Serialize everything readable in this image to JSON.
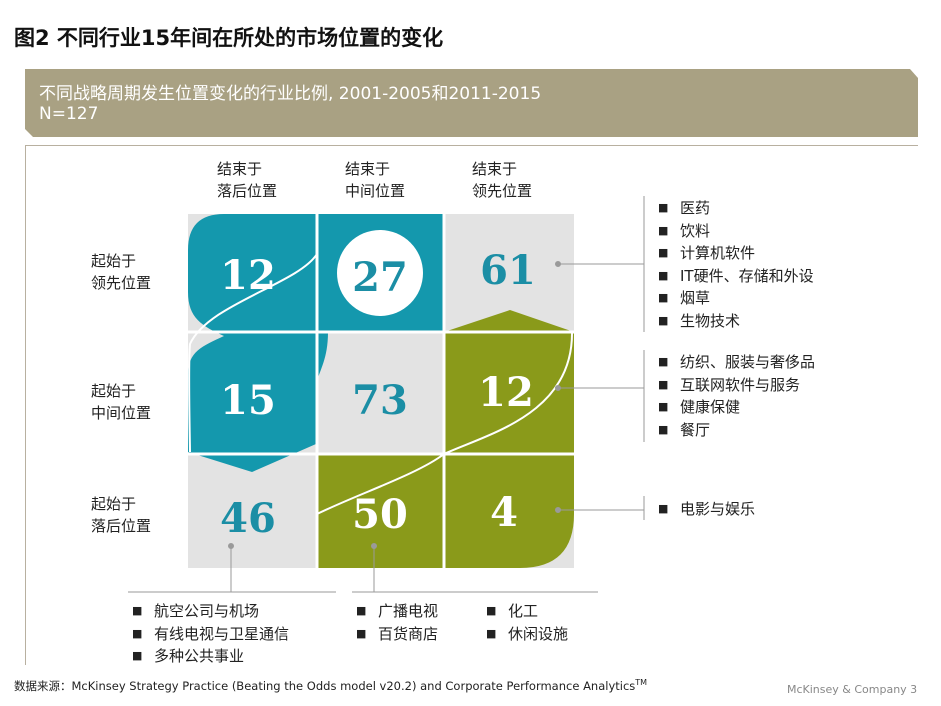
{
  "title": "图2 不同行业15年间在所处的市场位置的变化",
  "banner": {
    "line1": "不同战略周期发生位置变化的行业比例, 2001-2005和2011-2015",
    "line2": "N=127"
  },
  "columns": [
    {
      "line1": "结束于",
      "line2": "落后位置"
    },
    {
      "line1": "结束于",
      "line2": "中间位置"
    },
    {
      "line1": "结束于",
      "line2": "领先位置"
    }
  ],
  "rows": [
    {
      "line1": "起始于",
      "line2": "领先位置"
    },
    {
      "line1": "起始于",
      "line2": "中间位置"
    },
    {
      "line1": "起始于",
      "line2": "落后位置"
    }
  ],
  "matrix": [
    [
      "12",
      "27",
      "61"
    ],
    [
      "15",
      "73",
      "12"
    ],
    [
      "46",
      "50",
      "4"
    ]
  ],
  "lists": {
    "top_leader": [
      "医药",
      "饮料",
      "计算机软件",
      "IT硬件、存储和外设",
      "烟草",
      "生物技术"
    ],
    "mid_leader": [
      "纺织、服装与奢侈品",
      "互联网软件与服务",
      "健康保健",
      "餐厅"
    ],
    "lag_leader": [
      "电影与娱乐"
    ],
    "lag_lag": [
      "航空公司与机场",
      "有线电视与卫星通信",
      "多种公共事业"
    ],
    "lag_mid_a": [
      "广播电视",
      "百货商店"
    ],
    "lag_mid_b": [
      "化工",
      "休闲设施"
    ]
  },
  "bullet": "■",
  "source": {
    "text": "数据来源：McKinsey Strategy Practice (Beating the Odds model v20.2) and Corporate  Performance  Analytics",
    "sup": "TM"
  },
  "footer": "McKinsey & Company   3",
  "colors": {
    "teal": "#1498ad",
    "olive": "#8a9a1a",
    "grey": "#e3e3e3",
    "banner": "#a9a183",
    "teal_text": "#1b8ea5",
    "olive_text": "#7e8e12"
  }
}
